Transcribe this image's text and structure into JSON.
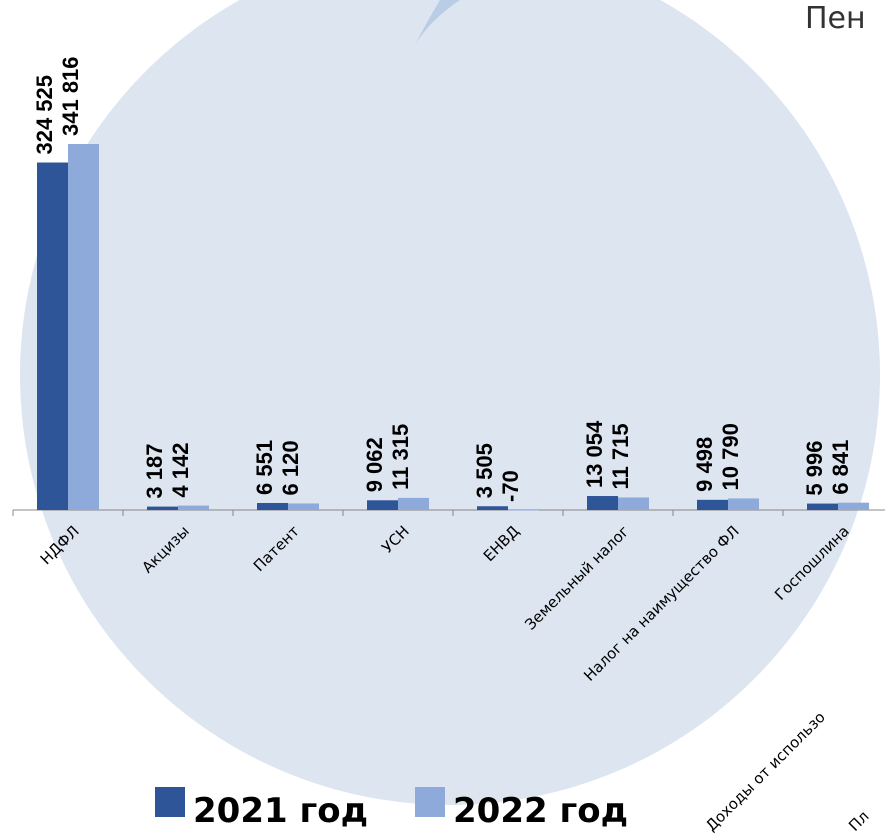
{
  "chart_data": {
    "type": "bar",
    "title": "Пен",
    "categories": [
      "НДФЛ",
      "Акцизы",
      "Патент",
      "УСН",
      "ЕНВД",
      "Земельный налог",
      "Налог на наимущество ФЛ",
      "Госпошлина",
      "Доходы от использо",
      "Пл"
    ],
    "series": [
      {
        "name": "2021 год",
        "color": "#2e5597",
        "values": [
          324525,
          3187,
          6551,
          9062,
          3505,
          13054,
          9498,
          5996,
          null,
          null
        ],
        "value_labels": [
          "324 525",
          "3 187",
          "6 551",
          "9 062",
          "3 505",
          "13 054",
          "9 498",
          "5 996",
          null,
          null
        ]
      },
      {
        "name": "2022 год",
        "color": "#8eaadb",
        "values": [
          341816,
          4142,
          6120,
          11315,
          -70,
          11715,
          10790,
          6841,
          null,
          null
        ],
        "value_labels": [
          "341 816",
          "4 142",
          "6 120",
          "11 315",
          "-70",
          "11 715",
          "10 790",
          "6 841",
          null,
          null
        ]
      }
    ]
  }
}
